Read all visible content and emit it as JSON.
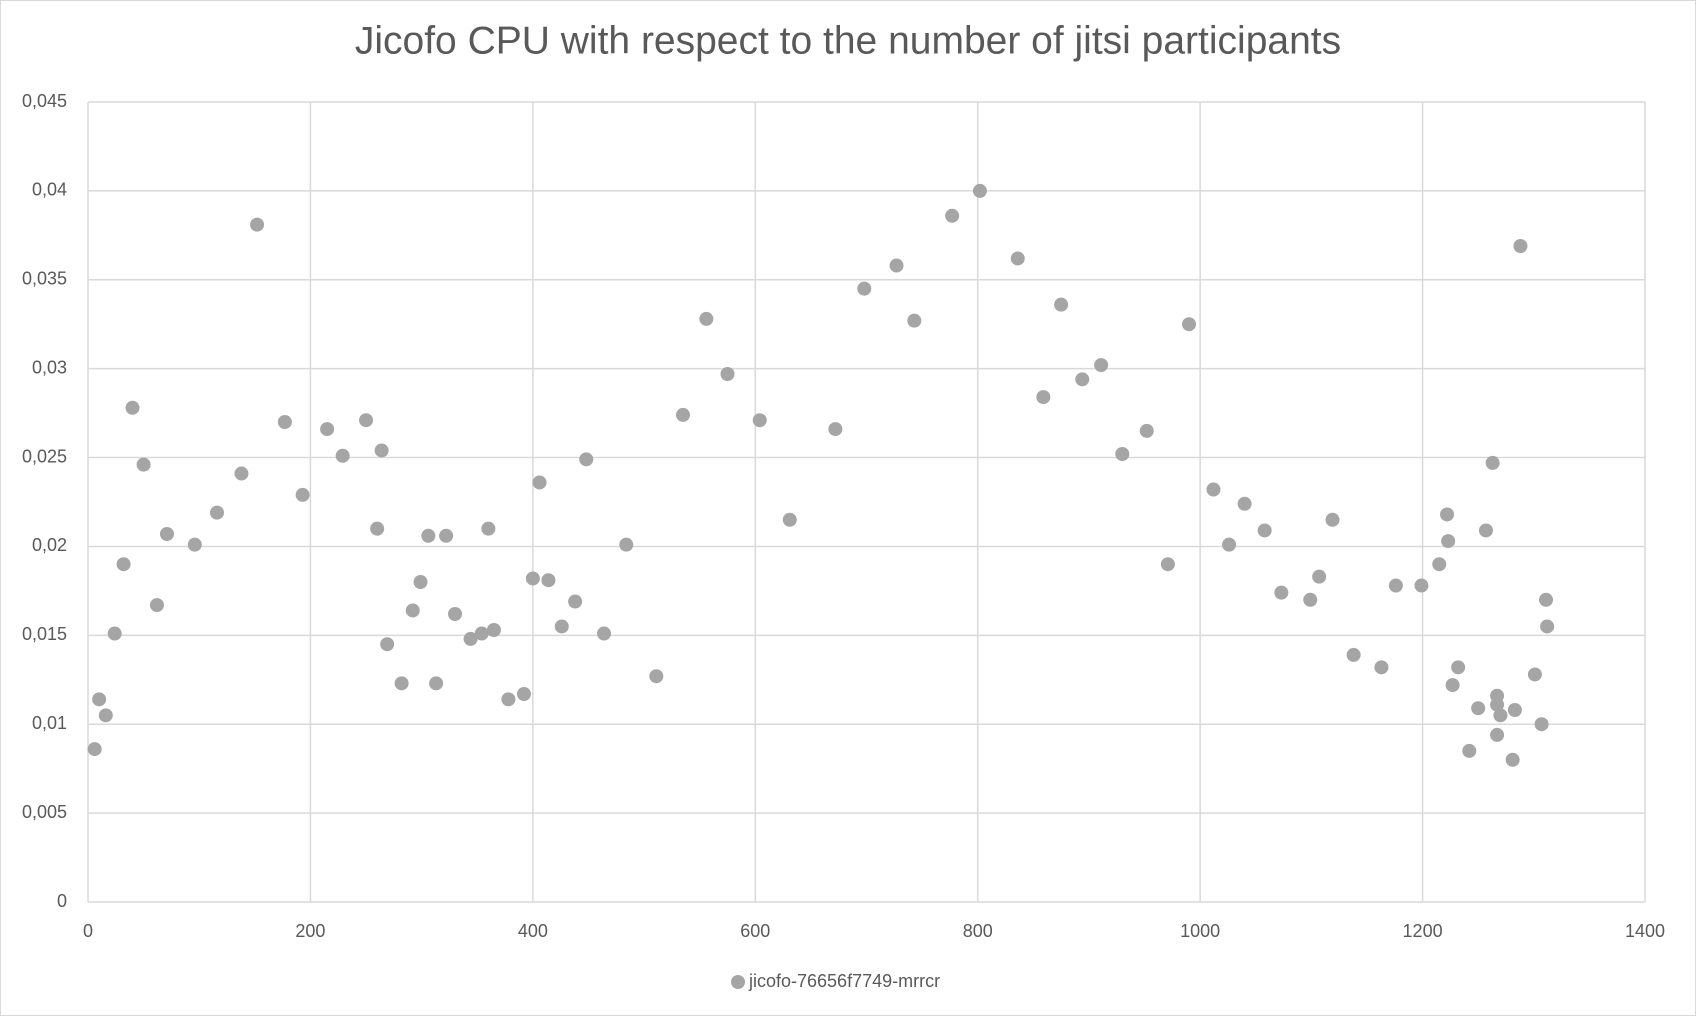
{
  "chart_data": {
    "type": "scatter",
    "title": "Jicofo CPU with respect to the number of jitsi participants",
    "legend": "bottom",
    "grid": true,
    "x": [
      6,
      10,
      16,
      24,
      32,
      40,
      50,
      62,
      71,
      96,
      116,
      138,
      152,
      177,
      193,
      215,
      229,
      250,
      260,
      264,
      269,
      282,
      292,
      299,
      306,
      313,
      322,
      330,
      344,
      354,
      360,
      365,
      378,
      392,
      400,
      406,
      414,
      426,
      438,
      448,
      464,
      484,
      511,
      535,
      556,
      575,
      604,
      631,
      672,
      698,
      727,
      743,
      777,
      802,
      836,
      859,
      875,
      894,
      911,
      930,
      952,
      971,
      990,
      1012,
      1026,
      1040,
      1058,
      1073,
      1099,
      1107,
      1119,
      1138,
      1163,
      1176,
      1199,
      1215,
      1222,
      1223,
      1227,
      1232,
      1242,
      1250,
      1257,
      1263,
      1267,
      1267,
      1267,
      1270,
      1281,
      1283,
      1288,
      1301,
      1307,
      1311,
      1312
    ],
    "series": [
      {
        "name": "jicofo-76656f7749-mrrcr",
        "color": "#a5a5a5",
        "values": [
          0.0086,
          0.0114,
          0.0105,
          0.0151,
          0.019,
          0.0278,
          0.0246,
          0.0167,
          0.0207,
          0.0201,
          0.0219,
          0.0241,
          0.0381,
          0.027,
          0.0229,
          0.0266,
          0.0251,
          0.0271,
          0.021,
          0.0254,
          0.0145,
          0.0123,
          0.0164,
          0.018,
          0.0206,
          0.0123,
          0.0206,
          0.0162,
          0.0148,
          0.0151,
          0.021,
          0.0153,
          0.0114,
          0.0117,
          0.0182,
          0.0236,
          0.0181,
          0.0155,
          0.0169,
          0.0249,
          0.0151,
          0.0201,
          0.0127,
          0.0274,
          0.0328,
          0.0297,
          0.0271,
          0.0215,
          0.0266,
          0.0345,
          0.0358,
          0.0327,
          0.0386,
          0.04,
          0.0362,
          0.0284,
          0.0336,
          0.0294,
          0.0302,
          0.0252,
          0.0265,
          0.019,
          0.0325,
          0.0232,
          0.0201,
          0.0224,
          0.0209,
          0.0174,
          0.017,
          0.0183,
          0.0215,
          0.0139,
          0.0132,
          0.0178,
          0.0178,
          0.019,
          0.0218,
          0.0203,
          0.0122,
          0.0132,
          0.0085,
          0.0109,
          0.0209,
          0.0247,
          0.0116,
          0.0111,
          0.0094,
          0.0105,
          0.008,
          0.0108,
          0.0369,
          0.0128,
          0.01,
          0.017,
          0.0155
        ]
      }
    ],
    "xlim": [
      0,
      1400
    ],
    "xticks": [
      0,
      200,
      400,
      600,
      800,
      1000,
      1200,
      1400
    ],
    "ylim": [
      0,
      0.045
    ],
    "yticks": [
      0,
      {
        "value": 0.005,
        "label": "0,005"
      },
      {
        "value": 0.01,
        "label": "0,01"
      },
      {
        "value": 0.015,
        "label": "0,015"
      },
      {
        "value": 0.02,
        "label": "0,02"
      },
      {
        "value": 0.025,
        "label": "0,025"
      },
      {
        "value": 0.03,
        "label": "0,03"
      },
      {
        "value": 0.035,
        "label": "0,035"
      },
      {
        "value": 0.04,
        "label": "0,04"
      },
      {
        "value": 0.045,
        "label": "0,045"
      }
    ]
  }
}
